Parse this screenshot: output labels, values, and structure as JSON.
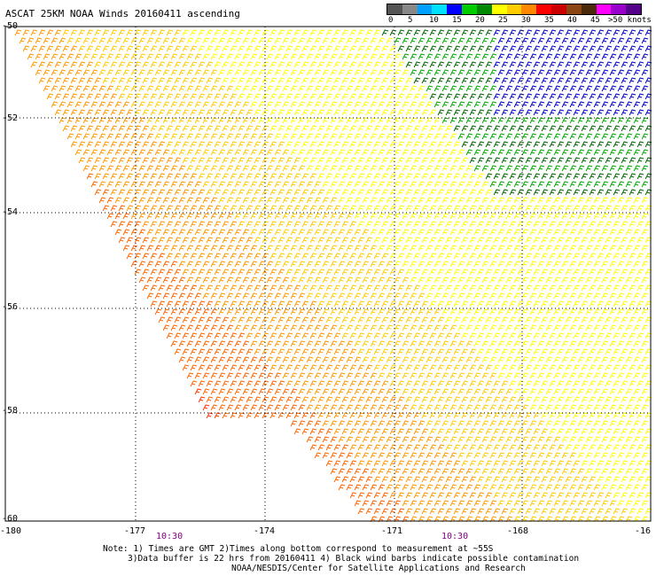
{
  "title": "ASCAT 25KM NOAA Winds 20160411 ascending",
  "legend": {
    "colors": [
      "#555555",
      "#888888",
      "#00a0ff",
      "#00e0ff",
      "#0000ff",
      "#00cc00",
      "#008800",
      "#ffff00",
      "#ffcc00",
      "#ff8800",
      "#ff0000",
      "#cc0000",
      "#8b4513",
      "#4a2a0a",
      "#ff00ff",
      "#9900cc",
      "#550088"
    ],
    "labels": [
      "0",
      "5",
      "10",
      "15",
      "20",
      "25",
      "30",
      "35",
      "40",
      "45",
      ">50 knots"
    ]
  },
  "axes": {
    "lon_ticks": [
      "-180",
      "-177",
      "-174",
      "-171",
      "-168",
      "-16"
    ],
    "lat_ticks": [
      "-50",
      "-52",
      "-54",
      "-56",
      "-58",
      "-60"
    ]
  },
  "times": [
    "10:30",
    "10:30"
  ],
  "notes": [
    "Note: 1) Times are GMT 2)Times along bottom correspond to measurement at ~55S",
    "3)Data buffer is 22 hrs from 20160411 4) Black wind barbs indicate possible contamination",
    "NOAA/NESDIS/Center for Satellite Applications and Research"
  ]
}
